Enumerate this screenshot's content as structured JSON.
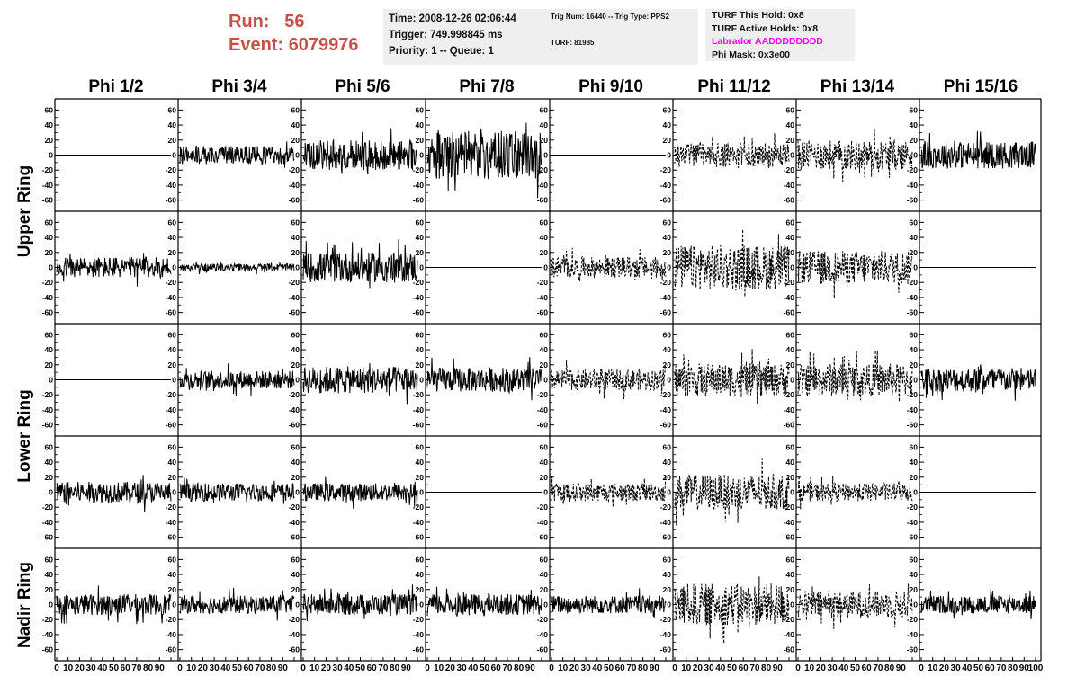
{
  "header": {
    "run_label": "Run:",
    "run_value": "56",
    "event_label": "Event:",
    "event_value": "6079976"
  },
  "info_box": {
    "time": "Time: 2008-12-26 02:06:44",
    "trigger": "Trigger: 749.998845 ms",
    "priority": "Priority: 1 -- Queue: 1"
  },
  "trig_box": {
    "trig": "Trig Num: 16440 -- Trig Type: PPS2",
    "turf": "TURF: 81985"
  },
  "turf_box": {
    "this_hold": "TURF This Hold: 0x8",
    "active_holds": "TURF Active Holds: 0x8",
    "labrador": "Labrador AADDDDDDDD",
    "phi_mask": "Phi Mask: 0x3e00",
    "labrador_color": "#ff00ff"
  },
  "chart_data": {
    "type": "line",
    "columns": [
      "Phi 1/2",
      "Phi 3/4",
      "Phi 5/6",
      "Phi 7/8",
      "Phi 9/10",
      "Phi 11/12",
      "Phi 13/14",
      "Phi 15/16"
    ],
    "ring_labels": [
      {
        "label": "Upper Ring",
        "rows": [
          0,
          1
        ]
      },
      {
        "label": "Lower Ring",
        "rows": [
          2,
          3
        ]
      },
      {
        "label": "Nadir Ring",
        "rows": [
          4
        ]
      }
    ],
    "xlim": [
      0,
      100
    ],
    "ylim": [
      -70,
      70
    ],
    "y_ticks": [
      -60,
      -40,
      -20,
      0,
      20,
      40,
      60
    ],
    "x_ticks": [
      0,
      10,
      20,
      30,
      40,
      50,
      60,
      70,
      80,
      90,
      100
    ],
    "x_tick_labels": [
      "0",
      "10",
      "20",
      "30",
      "40",
      "50",
      "60",
      "70",
      "80",
      "90",
      "100"
    ],
    "panels": [
      [
        "flat",
        "solid",
        "solid",
        "solid",
        "flat",
        "dashed",
        "dashed",
        "solid"
      ],
      [
        "solid",
        "solid",
        "solid",
        "flat",
        "dashed",
        "dashed",
        "dashed",
        "flat"
      ],
      [
        "flat",
        "solid",
        "solid",
        "solid",
        "dashed",
        "dashed",
        "dashed",
        "solid"
      ],
      [
        "solid",
        "solid",
        "solid",
        "flat",
        "dashed",
        "dashed",
        "dashed",
        "flat"
      ],
      [
        "solid",
        "solid",
        "solid",
        "solid",
        "solid",
        "dashed",
        "dashed",
        "solid"
      ]
    ],
    "amplitudes": [
      [
        0,
        12,
        20,
        32,
        0,
        16,
        20,
        18
      ],
      [
        14,
        5,
        20,
        0,
        14,
        30,
        22,
        0
      ],
      [
        0,
        12,
        18,
        16,
        14,
        22,
        22,
        16
      ],
      [
        14,
        12,
        12,
        0,
        12,
        24,
        12,
        0
      ],
      [
        14,
        12,
        14,
        14,
        12,
        28,
        18,
        12
      ]
    ],
    "grid": false,
    "legend": "none"
  }
}
